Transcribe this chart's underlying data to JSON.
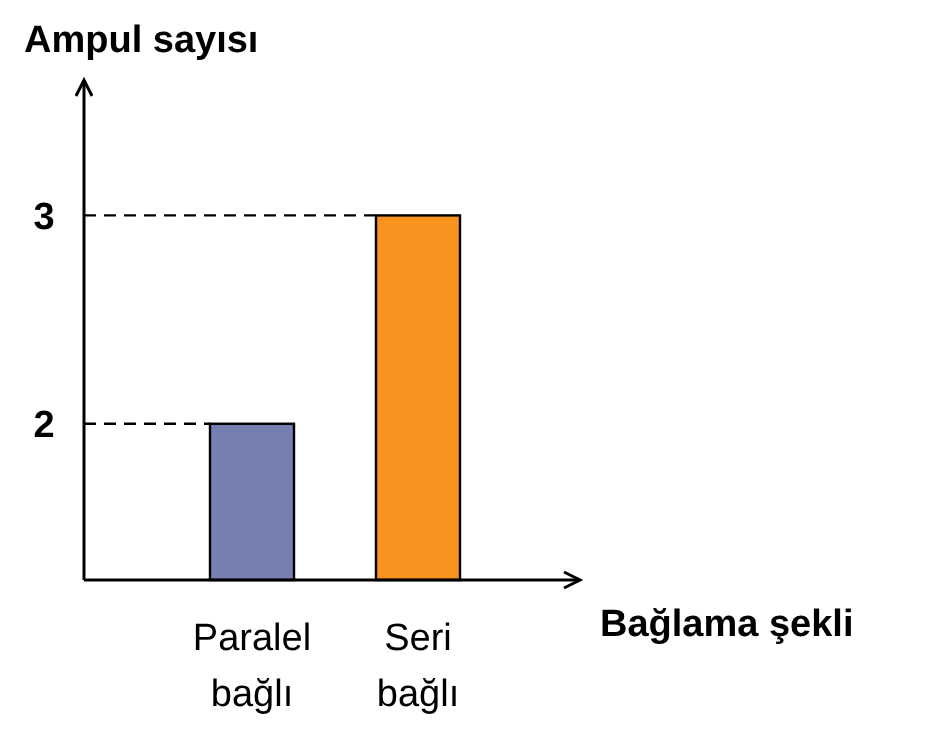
{
  "chart_data": {
    "type": "bar",
    "xlabel": "Bağlama şekli",
    "ylabel": "Ampul sayısı",
    "categories": [
      "Paralel bağlı",
      "Seri bağlı"
    ],
    "values": [
      2,
      3
    ],
    "colors": [
      "#7580b0",
      "#f7931e"
    ],
    "ylim": [
      1.25,
      3.65
    ],
    "yticks": [
      2,
      3
    ],
    "ref_lines": [
      {
        "axis": "y",
        "value": 2,
        "line_style": "dashed"
      },
      {
        "axis": "y",
        "value": 3,
        "line_style": "dashed"
      }
    ],
    "grid": false
  }
}
